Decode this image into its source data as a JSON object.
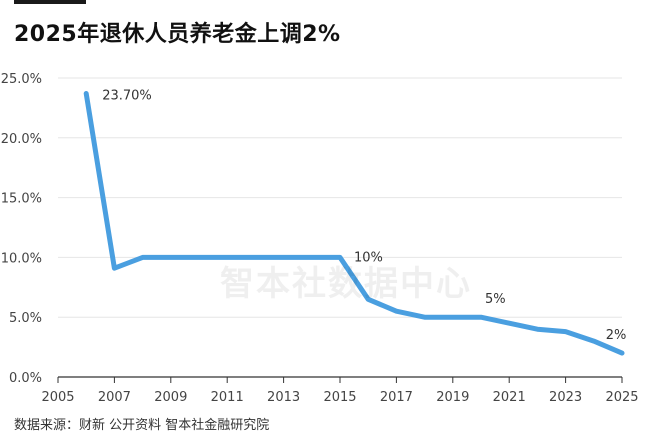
{
  "title": "2025年退休人员养老金上调2%",
  "watermark": "智本社数据中心",
  "source": "数据来源：财新 公开资料 智本社金融研究院",
  "chart_data": {
    "type": "line",
    "title": "2025年退休人员养老金上调2%",
    "xlabel": "",
    "ylabel": "",
    "x": [
      2006,
      2007,
      2008,
      2009,
      2010,
      2011,
      2012,
      2013,
      2014,
      2015,
      2016,
      2017,
      2018,
      2019,
      2020,
      2021,
      2022,
      2023,
      2024,
      2025
    ],
    "series": [
      {
        "values": [
          23.7,
          9.1,
          10,
          10,
          10,
          10,
          10,
          10,
          10,
          10,
          6.5,
          5.5,
          5,
          5,
          5,
          4.5,
          4,
          3.8,
          3,
          2
        ],
        "color": "#4a9fe0"
      }
    ],
    "xlim": [
      2005,
      2025
    ],
    "ylim": [
      0,
      25
    ],
    "xticks": [
      "2005",
      "2007",
      "2009",
      "2011",
      "2013",
      "2015",
      "2017",
      "2019",
      "2021",
      "2023",
      "2025"
    ],
    "xtick_values": [
      2005,
      2007,
      2009,
      2011,
      2013,
      2015,
      2017,
      2019,
      2021,
      2023,
      2025
    ],
    "yticks": [
      "0.0%",
      "5.0%",
      "10.0%",
      "15.0%",
      "20.0%",
      "25.0%"
    ],
    "ytick_values": [
      0,
      5,
      10,
      15,
      20,
      25
    ],
    "annotations": [
      {
        "x": 2006,
        "y": 23.7,
        "text": "23.70%"
      },
      {
        "x": 2015,
        "y": 10,
        "text": "10%"
      },
      {
        "x": 2020,
        "y": 5,
        "text": "5%"
      },
      {
        "x": 2025,
        "y": 2,
        "text": "2%"
      }
    ],
    "grid": true,
    "legend": "none"
  }
}
